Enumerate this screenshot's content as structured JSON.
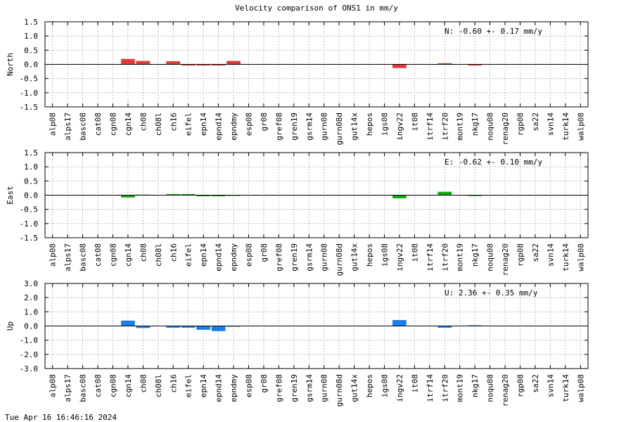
{
  "title": "Velocity comparison of ONS1 in mm/y",
  "timestamp": "Tue Apr 16 16:46:16 2024",
  "chart_data": [
    {
      "type": "bar",
      "ylabel": "North",
      "stat_text": "N:  -0.60 +-  0.17 mm/y",
      "color": "#e53935",
      "ylim": [
        -1.5,
        1.5
      ],
      "yticks": [
        "1.5",
        "1.0",
        "0.5",
        "0.0",
        "-0.5",
        "-1.0",
        "-1.5"
      ],
      "grid": true,
      "categories": [
        "alp08",
        "alps17",
        "basc08",
        "cat08",
        "cgn08",
        "cgn14",
        "ch08",
        "ch08l",
        "ch16",
        "eifel",
        "epn14",
        "epnd14",
        "epndmy",
        "esp08",
        "gr08",
        "gref08",
        "gren19",
        "gsrm14",
        "gurn08",
        "gurn08d",
        "gut14x",
        "hepos",
        "igs08",
        "ingv22",
        "it08",
        "itrf14",
        "itrf20",
        "mont19",
        "nkg17",
        "noqu08",
        "renag20",
        "rgp08",
        "sa22",
        "svn14",
        "turk14",
        "walp08"
      ],
      "values": [
        0,
        0,
        0,
        0,
        0,
        0.19,
        0.12,
        0,
        0.11,
        -0.04,
        -0.04,
        -0.04,
        0.12,
        0,
        0,
        0,
        0,
        0,
        0,
        0,
        0,
        0,
        0,
        -0.13,
        0,
        0,
        0.04,
        0,
        -0.04,
        0,
        0,
        0,
        0,
        0,
        0,
        0
      ]
    },
    {
      "type": "bar",
      "ylabel": "East",
      "stat_text": "E:  -0.62 +-  0.10 mm/y",
      "color": "#10a810",
      "ylim": [
        -1.5,
        1.5
      ],
      "yticks": [
        "1.5",
        "1.0",
        "0.5",
        "0.0",
        "-0.5",
        "-1.0",
        "-1.5"
      ],
      "grid": true,
      "categories": [
        "alp08",
        "alps17",
        "basc08",
        "cat08",
        "cgn08",
        "cgn14",
        "ch08",
        "ch08l",
        "ch16",
        "eifel",
        "epn14",
        "epnd14",
        "epndmy",
        "esp08",
        "gr08",
        "gref08",
        "gren19",
        "gsrm14",
        "gurn08",
        "gurn08d",
        "gut14x",
        "hepos",
        "igs08",
        "ingv22",
        "it08",
        "itrf14",
        "itrf20",
        "mont19",
        "nkg17",
        "noqu08",
        "renag20",
        "rgp08",
        "sa22",
        "svn14",
        "turk14",
        "walp08"
      ],
      "values": [
        0,
        0,
        0,
        0,
        0,
        -0.08,
        0.02,
        0,
        0.04,
        0.04,
        -0.04,
        -0.04,
        -0.02,
        0,
        0,
        0,
        0,
        0,
        0,
        0,
        0,
        0,
        0,
        -0.11,
        0,
        0,
        0.12,
        0,
        -0.03,
        0,
        0,
        0,
        0,
        0,
        0,
        0
      ]
    },
    {
      "type": "bar",
      "ylabel": "Up",
      "stat_text": "U:   2.36 +-  0.35 mm/y",
      "color": "#1a7fe6",
      "ylim": [
        -3.0,
        3.0
      ],
      "yticks": [
        "3.0",
        "2.0",
        "1.0",
        "0.0",
        "-1.0",
        "-2.0",
        "-3.0"
      ],
      "grid": true,
      "categories": [
        "alp08",
        "alps17",
        "basc08",
        "cat08",
        "cgn08",
        "cgn14",
        "ch08",
        "ch08l",
        "ch16",
        "eifel",
        "epn14",
        "epnd14",
        "epndmy",
        "esp08",
        "gr08",
        "gref08",
        "gren19",
        "gsrm14",
        "gurn08",
        "gurn08d",
        "gut14x",
        "hepos",
        "igs08",
        "ingv22",
        "it08",
        "itrf14",
        "itrf20",
        "mont19",
        "nkg17",
        "noqu08",
        "renag20",
        "rgp08",
        "sa22",
        "svn14",
        "turk14",
        "walp08"
      ],
      "values": [
        0,
        0,
        0,
        0,
        0,
        0.38,
        -0.14,
        0,
        -0.12,
        -0.12,
        -0.27,
        -0.36,
        -0.05,
        0,
        0,
        0,
        0,
        0,
        0,
        0,
        0,
        0,
        0,
        0.42,
        0,
        0,
        -0.12,
        0,
        0.05,
        0,
        0,
        0,
        0,
        0,
        0,
        0
      ]
    }
  ]
}
